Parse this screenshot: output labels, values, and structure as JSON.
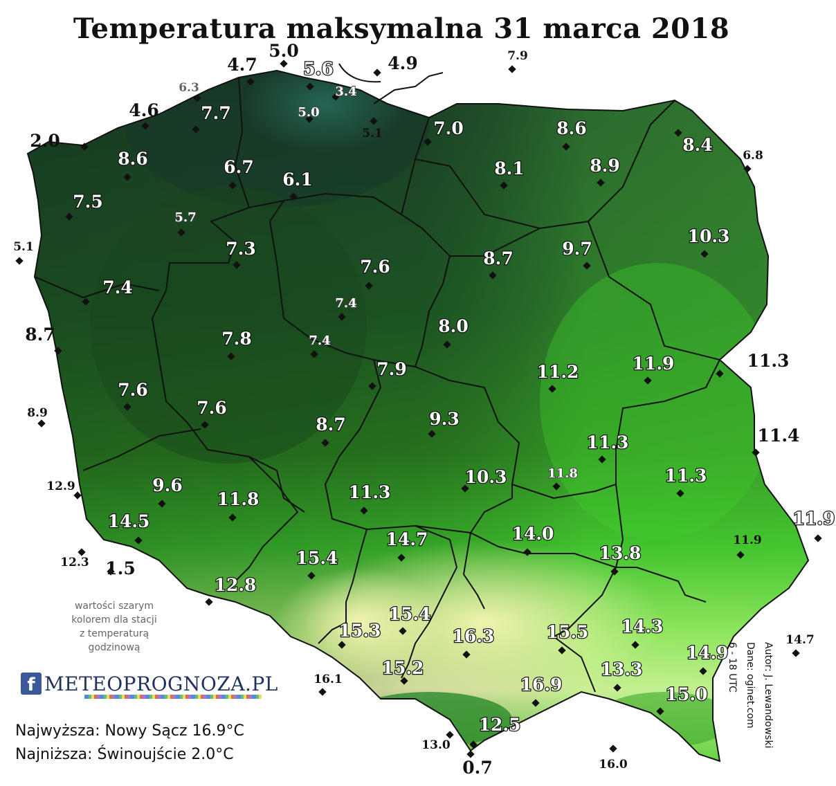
{
  "title": "Temperatura maksymalna 31 marca 2018",
  "note_lines": [
    "wartości szarym",
    "kolorem dla stacji",
    "z temperaturą",
    "godzinową"
  ],
  "logo": {
    "icon": "f",
    "text": "METEOPROGNOZA.PL"
  },
  "stats": {
    "max": "Najwyższa: Nowy Sącz 16.9°C",
    "min": "Najniższa: Świnoujście 2.0°C"
  },
  "credits": {
    "author": "Autor: J. Lewandowski",
    "data": "Dane: oginet.com",
    "hours": "6 - 18 UTC"
  },
  "colors": {
    "cold": "#1d4a2c",
    "mid": "#2f8a22",
    "warm": "#4fd12a",
    "hot": "#f2f6b4"
  },
  "stations": [
    {
      "name": "Świnoujście",
      "value": "2.0",
      "kind": "out"
    },
    {
      "value": "4.6",
      "kind": "out"
    },
    {
      "value": "6.3",
      "kind": "grey"
    },
    {
      "value": "4.7",
      "kind": "out"
    },
    {
      "value": "5.0",
      "kind": "out"
    },
    {
      "value": "5.6",
      "kind": "in"
    },
    {
      "value": "3.4",
      "kind": "grey-in"
    },
    {
      "value": "4.9",
      "kind": "out"
    },
    {
      "value": "7.9",
      "kind": "small"
    },
    {
      "value": "7.7",
      "kind": "in"
    },
    {
      "value": "5.0",
      "kind": "grey-in"
    },
    {
      "value": "5.1",
      "kind": "small"
    },
    {
      "value": "7.0",
      "kind": "in"
    },
    {
      "value": "8.6",
      "kind": "in"
    },
    {
      "value": "8.4",
      "kind": "in"
    },
    {
      "value": "8.6",
      "kind": "in"
    },
    {
      "value": "6.7",
      "kind": "in"
    },
    {
      "value": "6.1",
      "kind": "in"
    },
    {
      "value": "8.1",
      "kind": "in"
    },
    {
      "value": "8.9",
      "kind": "in"
    },
    {
      "value": "6.8",
      "kind": "small"
    },
    {
      "value": "7.5",
      "kind": "in"
    },
    {
      "value": "5.7",
      "kind": "grey-in"
    },
    {
      "value": "5.1",
      "kind": "small"
    },
    {
      "value": "7.3",
      "kind": "in"
    },
    {
      "value": "10.3",
      "kind": "in"
    },
    {
      "value": "7.6",
      "kind": "in"
    },
    {
      "value": "8.7",
      "kind": "in"
    },
    {
      "value": "9.7",
      "kind": "in"
    },
    {
      "value": "7.4",
      "kind": "in"
    },
    {
      "value": "7.4",
      "kind": "grey-in"
    },
    {
      "value": "8.7",
      "kind": "out"
    },
    {
      "value": "7.8",
      "kind": "in"
    },
    {
      "value": "7.4",
      "kind": "grey-in"
    },
    {
      "value": "8.0",
      "kind": "in"
    },
    {
      "value": "7.9",
      "kind": "in"
    },
    {
      "value": "11.2",
      "kind": "in"
    },
    {
      "value": "11.9",
      "kind": "in"
    },
    {
      "value": "11.3",
      "kind": "out"
    },
    {
      "value": "7.6",
      "kind": "in"
    },
    {
      "value": "8.9",
      "kind": "small"
    },
    {
      "value": "7.6",
      "kind": "in"
    },
    {
      "value": "9.3",
      "kind": "in"
    },
    {
      "value": "8.7",
      "kind": "in"
    },
    {
      "value": "11.3",
      "kind": "in"
    },
    {
      "value": "11.4",
      "kind": "out"
    },
    {
      "value": "12.9",
      "kind": "small"
    },
    {
      "value": "9.6",
      "kind": "in"
    },
    {
      "value": "11.8",
      "kind": "in"
    },
    {
      "value": "11.3",
      "kind": "in"
    },
    {
      "value": "10.3",
      "kind": "in"
    },
    {
      "value": "11.8",
      "kind": "grey-in"
    },
    {
      "value": "11.3",
      "kind": "in"
    },
    {
      "value": "11.9",
      "kind": "in"
    },
    {
      "value": "14.5",
      "kind": "in"
    },
    {
      "value": "14.7",
      "kind": "in"
    },
    {
      "value": "14.0",
      "kind": "in"
    },
    {
      "value": "13.8",
      "kind": "in"
    },
    {
      "value": "11.9",
      "kind": "small"
    },
    {
      "value": "12.3",
      "kind": "small"
    },
    {
      "value": "1.5",
      "kind": "out"
    },
    {
      "value": "15.4",
      "kind": "in"
    },
    {
      "value": "12.8",
      "kind": "in"
    },
    {
      "value": "15.4",
      "kind": "in"
    },
    {
      "value": "15.3",
      "kind": "in"
    },
    {
      "value": "16.3",
      "kind": "in"
    },
    {
      "value": "15.5",
      "kind": "in"
    },
    {
      "value": "14.3",
      "kind": "in"
    },
    {
      "value": "14.7",
      "kind": "small"
    },
    {
      "value": "14.9",
      "kind": "in"
    },
    {
      "value": "16.1",
      "kind": "small"
    },
    {
      "value": "15.2",
      "kind": "in"
    },
    {
      "name": "Nowy Sącz",
      "value": "16.9",
      "kind": "in"
    },
    {
      "value": "13.3",
      "kind": "in"
    },
    {
      "value": "15.0",
      "kind": "in"
    },
    {
      "value": "12.5",
      "kind": "in"
    },
    {
      "value": "13.0",
      "kind": "small"
    },
    {
      "value": "0.7",
      "kind": "out"
    },
    {
      "value": "16.0",
      "kind": "small"
    }
  ]
}
